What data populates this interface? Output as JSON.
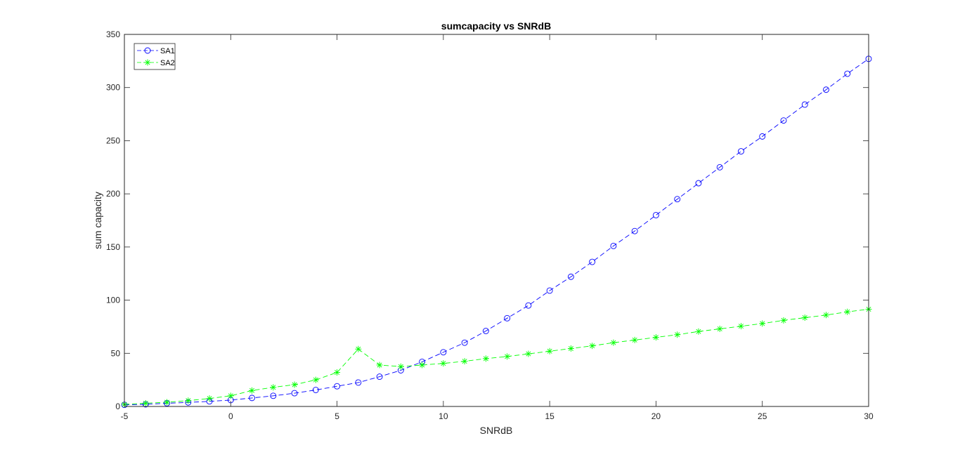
{
  "chart_data": {
    "type": "line",
    "title": "sumcapacity vs SNRdB",
    "xlabel": "SNRdB",
    "ylabel": "sum capacity",
    "xlim": [
      -5,
      30
    ],
    "ylim": [
      0,
      350
    ],
    "xticks": [
      "-5",
      "0",
      "5",
      "10",
      "15",
      "20",
      "25",
      "30"
    ],
    "yticks": [
      "0",
      "50",
      "100",
      "150",
      "200",
      "250",
      "300",
      "350"
    ],
    "grid": false,
    "legend_position": "top-left",
    "x": [
      -5,
      -4,
      -3,
      -2,
      -1,
      0,
      1,
      2,
      3,
      4,
      5,
      6,
      7,
      8,
      9,
      10,
      11,
      12,
      13,
      14,
      15,
      16,
      17,
      18,
      19,
      20,
      21,
      22,
      23,
      24,
      25,
      26,
      27,
      28,
      29,
      30
    ],
    "series": [
      {
        "name": "SA1",
        "color": "#0000ff",
        "marker": "circle",
        "line_style": "dashed",
        "values": [
          1.5,
          2,
          3,
          3.8,
          4.8,
          6,
          8,
          10,
          12.5,
          15.5,
          19,
          22.5,
          28,
          34,
          42,
          51,
          60,
          71,
          83,
          95,
          109,
          122,
          136,
          151,
          165,
          180,
          195,
          210,
          225,
          240,
          254,
          269,
          284,
          298,
          313,
          327
        ]
      },
      {
        "name": "SA2",
        "color": "#00ff00",
        "marker": "asterisk",
        "line_style": "dashed",
        "values": [
          2,
          3,
          4,
          5.5,
          7.5,
          10,
          15,
          18,
          20.5,
          25,
          32,
          54,
          39,
          37.5,
          39,
          40.5,
          42.5,
          45,
          47,
          49.5,
          52,
          54.5,
          57,
          60,
          62.5,
          65,
          67.5,
          70.5,
          73,
          75.5,
          78,
          81,
          83.5,
          86,
          89,
          91.5
        ]
      }
    ]
  }
}
